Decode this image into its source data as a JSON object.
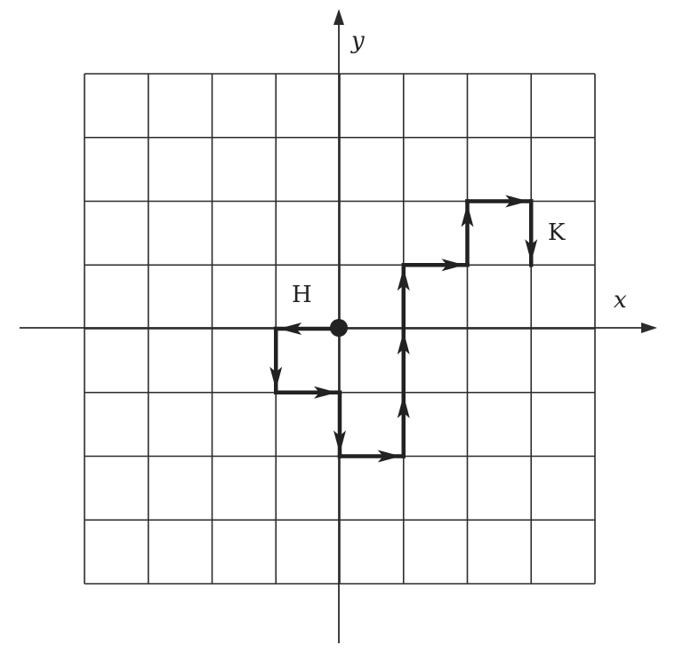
{
  "diagram": {
    "grid": {
      "cols": 8,
      "rows": 8,
      "x_min": -4,
      "x_max": 4,
      "y_min": -4,
      "y_max": 4
    },
    "axes": {
      "x_label": "x",
      "y_label": "y"
    },
    "start_point": {
      "x": 0,
      "y": 0,
      "label": "H"
    },
    "end_point": {
      "x": 3,
      "y": 1,
      "label": "K"
    },
    "path": [
      {
        "from": [
          0,
          0
        ],
        "to": [
          -1,
          0
        ]
      },
      {
        "from": [
          -1,
          0
        ],
        "to": [
          -1,
          -1
        ]
      },
      {
        "from": [
          -1,
          -1
        ],
        "to": [
          0,
          -1
        ]
      },
      {
        "from": [
          0,
          -1
        ],
        "to": [
          0,
          -2
        ]
      },
      {
        "from": [
          0,
          -2
        ],
        "to": [
          1,
          -2
        ]
      },
      {
        "from": [
          1,
          -2
        ],
        "to": [
          1,
          -1
        ]
      },
      {
        "from": [
          1,
          -1
        ],
        "to": [
          1,
          0
        ]
      },
      {
        "from": [
          1,
          0
        ],
        "to": [
          1,
          1
        ]
      },
      {
        "from": [
          1,
          1
        ],
        "to": [
          2,
          1
        ]
      },
      {
        "from": [
          2,
          1
        ],
        "to": [
          2,
          2
        ]
      },
      {
        "from": [
          2,
          2
        ],
        "to": [
          3,
          2
        ]
      },
      {
        "from": [
          3,
          2
        ],
        "to": [
          3,
          1
        ]
      }
    ]
  }
}
